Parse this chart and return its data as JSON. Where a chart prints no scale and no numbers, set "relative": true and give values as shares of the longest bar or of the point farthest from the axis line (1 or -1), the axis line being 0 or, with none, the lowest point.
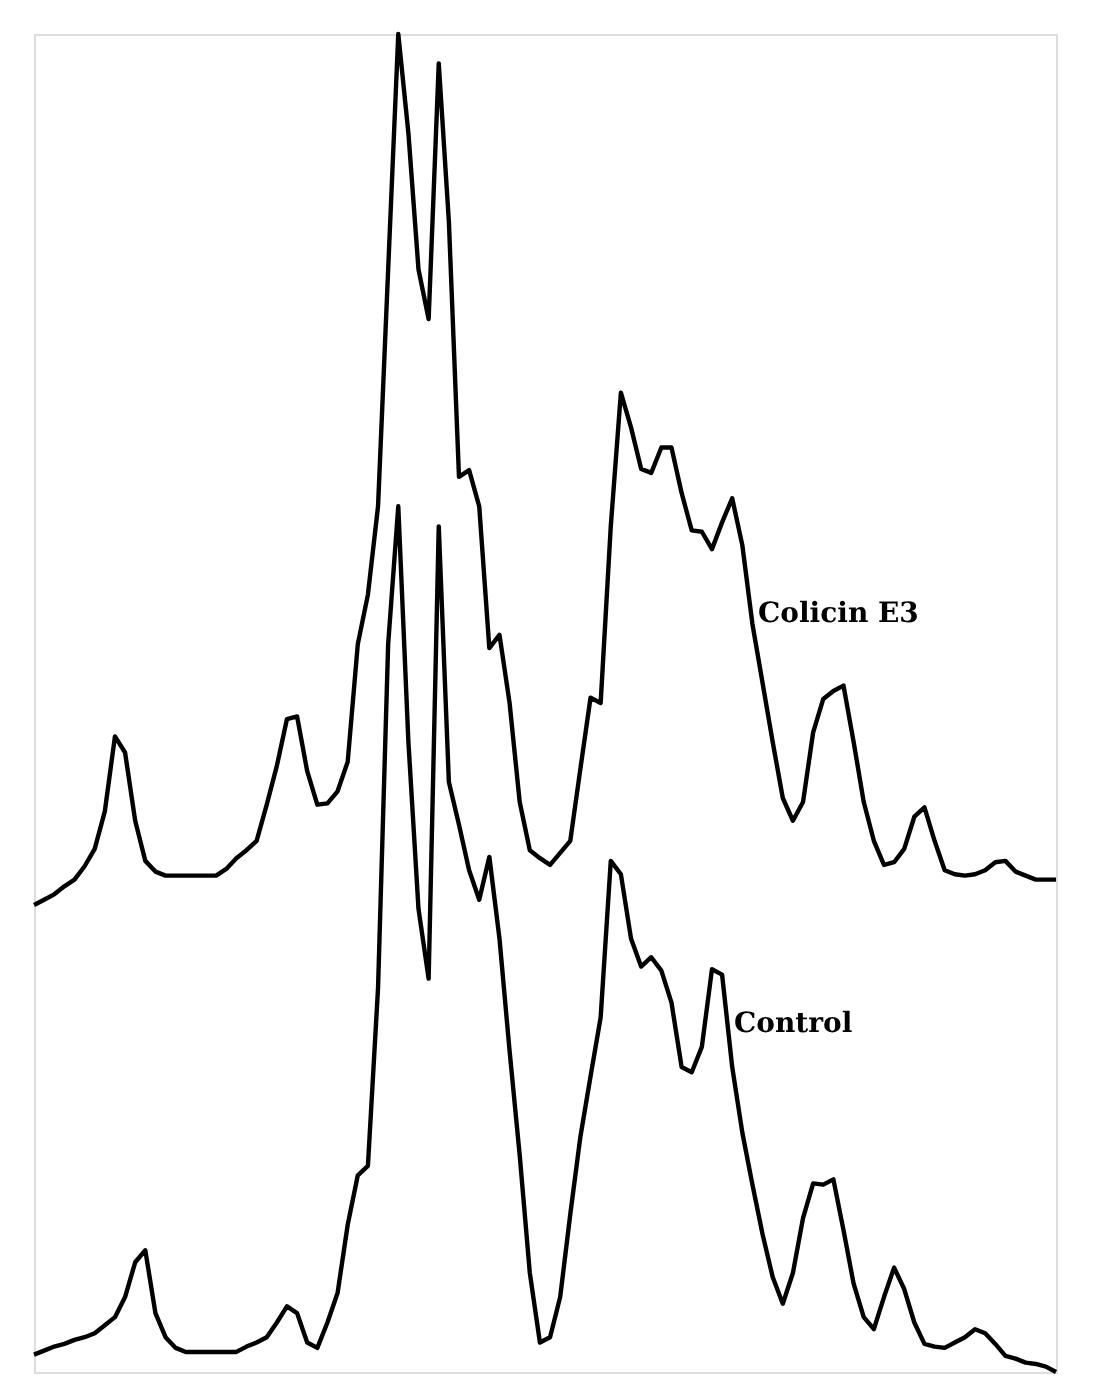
{
  "chart_data": {
    "type": "line",
    "relative": true,
    "line_style": "solid",
    "marker": "none",
    "categories": [
      null,
      null,
      null,
      null,
      null,
      null,
      null,
      null,
      null,
      null,
      null,
      null,
      null,
      null,
      null,
      null,
      null,
      null,
      null,
      null,
      null,
      null,
      null,
      null,
      null,
      null,
      null,
      null,
      null,
      null,
      null,
      null,
      null,
      null,
      null,
      null,
      null,
      null,
      null,
      null,
      null,
      null,
      null,
      null,
      null,
      null,
      null,
      null,
      null,
      null,
      null,
      null,
      null,
      null,
      null,
      null,
      null,
      null,
      null,
      null,
      null,
      null,
      null,
      null,
      null,
      null,
      null,
      null,
      null,
      null,
      null,
      null,
      null,
      null,
      null,
      null,
      null,
      null,
      null,
      null,
      null,
      null,
      null,
      null,
      null,
      null,
      null,
      null,
      null,
      null,
      null,
      null,
      null,
      null,
      null,
      null,
      null,
      null,
      null,
      null,
      null,
      null
    ],
    "series": [
      {
        "name": "Colicin E3",
        "color": "#000000",
        "values": [
          0.349,
          0.353,
          0.357,
          0.363,
          0.368,
          0.378,
          0.391,
          0.419,
          0.475,
          0.463,
          0.412,
          0.382,
          0.374,
          0.371,
          0.371,
          0.371,
          0.371,
          0.371,
          0.371,
          0.376,
          0.384,
          0.39,
          0.397,
          0.424,
          0.453,
          0.488,
          0.49,
          0.449,
          0.424,
          0.425,
          0.434,
          0.456,
          0.544,
          0.581,
          0.647,
          0.824,
          1.0,
          0.926,
          0.824,
          0.787,
          0.978,
          0.86,
          0.669,
          0.674,
          0.647,
          0.541,
          0.551,
          0.5,
          0.426,
          0.39,
          0.384,
          0.379,
          0.388,
          0.397,
          0.451,
          0.504,
          0.5,
          0.632,
          0.732,
          0.706,
          0.675,
          0.672,
          0.691,
          0.691,
          0.657,
          0.629,
          0.628,
          0.615,
          0.635,
          0.653,
          0.618,
          0.559,
          0.515,
          0.471,
          0.429,
          0.412,
          0.426,
          0.478,
          0.503,
          0.509,
          0.513,
          0.471,
          0.426,
          0.397,
          0.379,
          0.381,
          0.391,
          0.415,
          0.422,
          0.397,
          0.375,
          0.372,
          0.371,
          0.372,
          0.375,
          0.381,
          0.382,
          0.374,
          0.371,
          0.368,
          0.368,
          0.368
        ]
      },
      {
        "name": "Control",
        "color": "#000000",
        "values": [
          0.013,
          0.016,
          0.019,
          0.021,
          0.024,
          0.026,
          0.029,
          0.035,
          0.041,
          0.056,
          0.082,
          0.091,
          0.044,
          0.026,
          0.018,
          0.015,
          0.015,
          0.015,
          0.015,
          0.015,
          0.015,
          0.019,
          0.022,
          0.026,
          0.037,
          0.049,
          0.044,
          0.022,
          0.018,
          0.037,
          0.059,
          0.11,
          0.147,
          0.154,
          0.287,
          0.544,
          0.647,
          0.471,
          0.346,
          0.294,
          0.632,
          0.441,
          0.409,
          0.375,
          0.353,
          0.385,
          0.324,
          0.24,
          0.162,
          0.074,
          0.022,
          0.026,
          0.056,
          0.118,
          0.176,
          0.221,
          0.265,
          0.382,
          0.372,
          0.324,
          0.303,
          0.31,
          0.3,
          0.276,
          0.228,
          0.224,
          0.243,
          0.301,
          0.297,
          0.228,
          0.179,
          0.14,
          0.103,
          0.071,
          0.051,
          0.074,
          0.115,
          0.141,
          0.14,
          0.144,
          0.106,
          0.066,
          0.041,
          0.032,
          0.056,
          0.078,
          0.062,
          0.037,
          0.021,
          0.019,
          0.018,
          0.022,
          0.026,
          0.032,
          0.029,
          0.021,
          0.012,
          0.01,
          0.007,
          0.006,
          0.004,
          0.0
        ]
      }
    ]
  }
}
